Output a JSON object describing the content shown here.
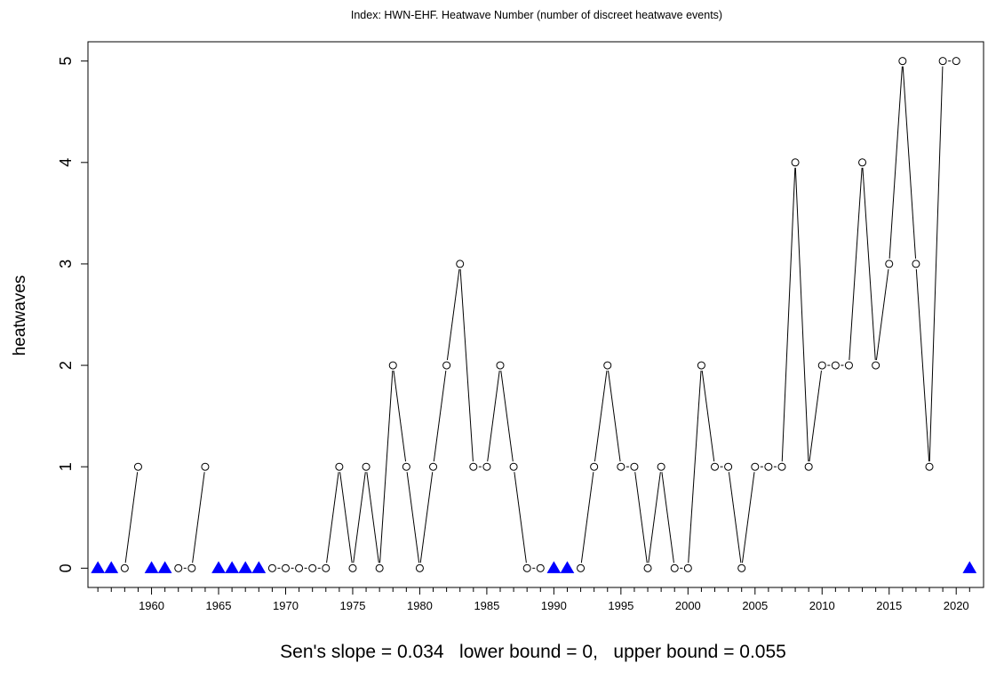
{
  "chart_data": {
    "type": "line",
    "title": "Index: HWN-EHF. Heatwave Number (number of discreet heatwave events)",
    "xlabel": "",
    "ylabel": "heatwaves",
    "footer": "Sen's slope = 0.034   lower bound = 0,   upper bound = 0.055",
    "xlim": [
      1955,
      2022
    ],
    "ylim": [
      0,
      5
    ],
    "x_ticks": [
      1960,
      1965,
      1970,
      1975,
      1980,
      1985,
      1990,
      1995,
      2000,
      2005,
      2010,
      2015,
      2020
    ],
    "x_tick_labels": [
      "1960",
      "1965",
      "1970",
      "1975",
      "1980",
      "1985",
      "1990",
      "1995",
      "2000",
      "2005",
      "2010",
      "2015",
      "2020"
    ],
    "y_ticks": [
      0,
      1,
      2,
      3,
      4,
      5
    ],
    "y_tick_labels": [
      "0",
      "1",
      "2",
      "3",
      "4",
      "5"
    ],
    "grid": false,
    "series": [
      {
        "values": [
          {
            "x": 1958,
            "y": 0
          },
          {
            "x": 1959,
            "y": 1
          },
          {
            "x": 1962,
            "y": 0
          },
          {
            "x": 1963,
            "y": 0
          },
          {
            "x": 1964,
            "y": 1
          },
          {
            "x": 1969,
            "y": 0
          },
          {
            "x": 1970,
            "y": 0
          },
          {
            "x": 1971,
            "y": 0
          },
          {
            "x": 1972,
            "y": 0
          },
          {
            "x": 1973,
            "y": 0
          },
          {
            "x": 1974,
            "y": 1
          },
          {
            "x": 1975,
            "y": 0
          },
          {
            "x": 1976,
            "y": 1
          },
          {
            "x": 1977,
            "y": 0
          },
          {
            "x": 1978,
            "y": 2
          },
          {
            "x": 1979,
            "y": 1
          },
          {
            "x": 1980,
            "y": 0
          },
          {
            "x": 1981,
            "y": 1
          },
          {
            "x": 1982,
            "y": 2
          },
          {
            "x": 1983,
            "y": 3
          },
          {
            "x": 1984,
            "y": 1
          },
          {
            "x": 1985,
            "y": 1
          },
          {
            "x": 1986,
            "y": 2
          },
          {
            "x": 1987,
            "y": 1
          },
          {
            "x": 1988,
            "y": 0
          },
          {
            "x": 1989,
            "y": 0
          },
          {
            "x": 1992,
            "y": 0
          },
          {
            "x": 1993,
            "y": 1
          },
          {
            "x": 1994,
            "y": 2
          },
          {
            "x": 1995,
            "y": 1
          },
          {
            "x": 1996,
            "y": 1
          },
          {
            "x": 1997,
            "y": 0
          },
          {
            "x": 1998,
            "y": 1
          },
          {
            "x": 1999,
            "y": 0
          },
          {
            "x": 2000,
            "y": 0
          },
          {
            "x": 2001,
            "y": 2
          },
          {
            "x": 2002,
            "y": 1
          },
          {
            "x": 2003,
            "y": 1
          },
          {
            "x": 2004,
            "y": 0
          },
          {
            "x": 2005,
            "y": 1
          },
          {
            "x": 2006,
            "y": 1
          },
          {
            "x": 2007,
            "y": 1
          },
          {
            "x": 2008,
            "y": 4
          },
          {
            "x": 2009,
            "y": 1
          },
          {
            "x": 2010,
            "y": 2
          },
          {
            "x": 2011,
            "y": 2
          },
          {
            "x": 2012,
            "y": 2
          },
          {
            "x": 2013,
            "y": 4
          },
          {
            "x": 2014,
            "y": 2
          },
          {
            "x": 2015,
            "y": 3
          },
          {
            "x": 2016,
            "y": 5
          },
          {
            "x": 2017,
            "y": 3
          },
          {
            "x": 2018,
            "y": 1
          },
          {
            "x": 2019,
            "y": 5
          },
          {
            "x": 2020,
            "y": 5
          }
        ],
        "color": "#000000",
        "marker": "open-circle"
      },
      {
        "values": [
          {
            "x": 1956,
            "y": 0
          },
          {
            "x": 1957,
            "y": 0
          },
          {
            "x": 1960,
            "y": 0
          },
          {
            "x": 1961,
            "y": 0
          },
          {
            "x": 1965,
            "y": 0
          },
          {
            "x": 1966,
            "y": 0
          },
          {
            "x": 1967,
            "y": 0
          },
          {
            "x": 1968,
            "y": 0
          },
          {
            "x": 1990,
            "y": 0
          },
          {
            "x": 1991,
            "y": 0
          },
          {
            "x": 2021,
            "y": 0
          }
        ],
        "color": "#0000ff",
        "marker": "filled-triangle"
      }
    ]
  }
}
